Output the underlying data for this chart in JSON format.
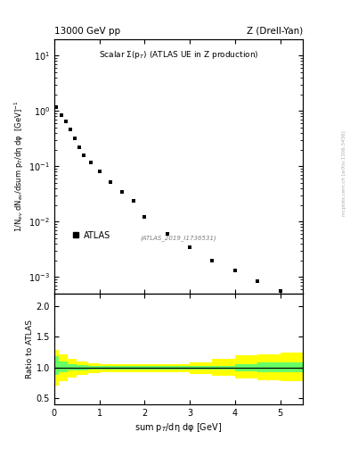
{
  "title_left": "13000 GeV pp",
  "title_right": "Z (Drell-Yan)",
  "main_annotation": "Scalar Σ(p_T) (ATLAS UE in Z production)",
  "watermark": "(ATLAS_2019_I1736531)",
  "side_label": "mcplots.cern.ch [arXiv:1306.3436]",
  "ylabel_main": "1/N_ev dN_ev/dsum p_T/dη dφ  [GeV]",
  "ylabel_ratio": "Ratio to ATLAS",
  "xlabel": "sum p_T/dη dφ [GeV]",
  "legend_label": "ATLAS",
  "data_x": [
    0.05,
    0.15,
    0.25,
    0.35,
    0.45,
    0.55,
    0.65,
    0.8,
    1.0,
    1.25,
    1.5,
    1.75,
    2.0,
    2.5,
    3.0,
    3.5,
    4.0,
    4.5,
    5.0
  ],
  "data_y": [
    1.15,
    0.85,
    0.65,
    0.46,
    0.32,
    0.22,
    0.16,
    0.115,
    0.082,
    0.052,
    0.035,
    0.024,
    0.012,
    0.006,
    0.0035,
    0.002,
    0.0013,
    0.00085,
    0.00055
  ],
  "ratio_x": [
    0.0,
    0.1,
    0.3,
    0.5,
    0.75,
    1.0,
    1.25,
    1.5,
    1.75,
    2.0,
    2.5,
    3.0,
    3.5,
    4.0,
    4.5,
    5.0,
    5.5
  ],
  "ratio_green_low": [
    0.88,
    0.93,
    0.95,
    0.96,
    0.97,
    0.97,
    0.97,
    0.97,
    0.97,
    0.97,
    0.97,
    0.97,
    0.97,
    0.94,
    0.93,
    0.93,
    0.93
  ],
  "ratio_green_high": [
    1.18,
    1.1,
    1.06,
    1.04,
    1.02,
    1.02,
    1.02,
    1.02,
    1.02,
    1.02,
    1.02,
    1.02,
    1.03,
    1.05,
    1.08,
    1.09,
    1.09
  ],
  "ratio_yellow_low": [
    0.7,
    0.78,
    0.84,
    0.88,
    0.91,
    0.92,
    0.92,
    0.93,
    0.93,
    0.93,
    0.93,
    0.9,
    0.87,
    0.82,
    0.8,
    0.78,
    0.78
  ],
  "ratio_yellow_high": [
    1.28,
    1.22,
    1.14,
    1.1,
    1.07,
    1.05,
    1.05,
    1.05,
    1.05,
    1.05,
    1.05,
    1.09,
    1.14,
    1.2,
    1.22,
    1.24,
    1.24
  ],
  "xlim": [
    0,
    5.5
  ],
  "ylim_main": [
    0.0005,
    20
  ],
  "ylim_ratio": [
    0.4,
    2.2
  ],
  "ratio_yticks": [
    0.5,
    1.0,
    1.5,
    2.0
  ],
  "color_green": "#66ff66",
  "color_yellow": "#ffff00",
  "marker_color": "black",
  "line_color": "black",
  "background": "white"
}
